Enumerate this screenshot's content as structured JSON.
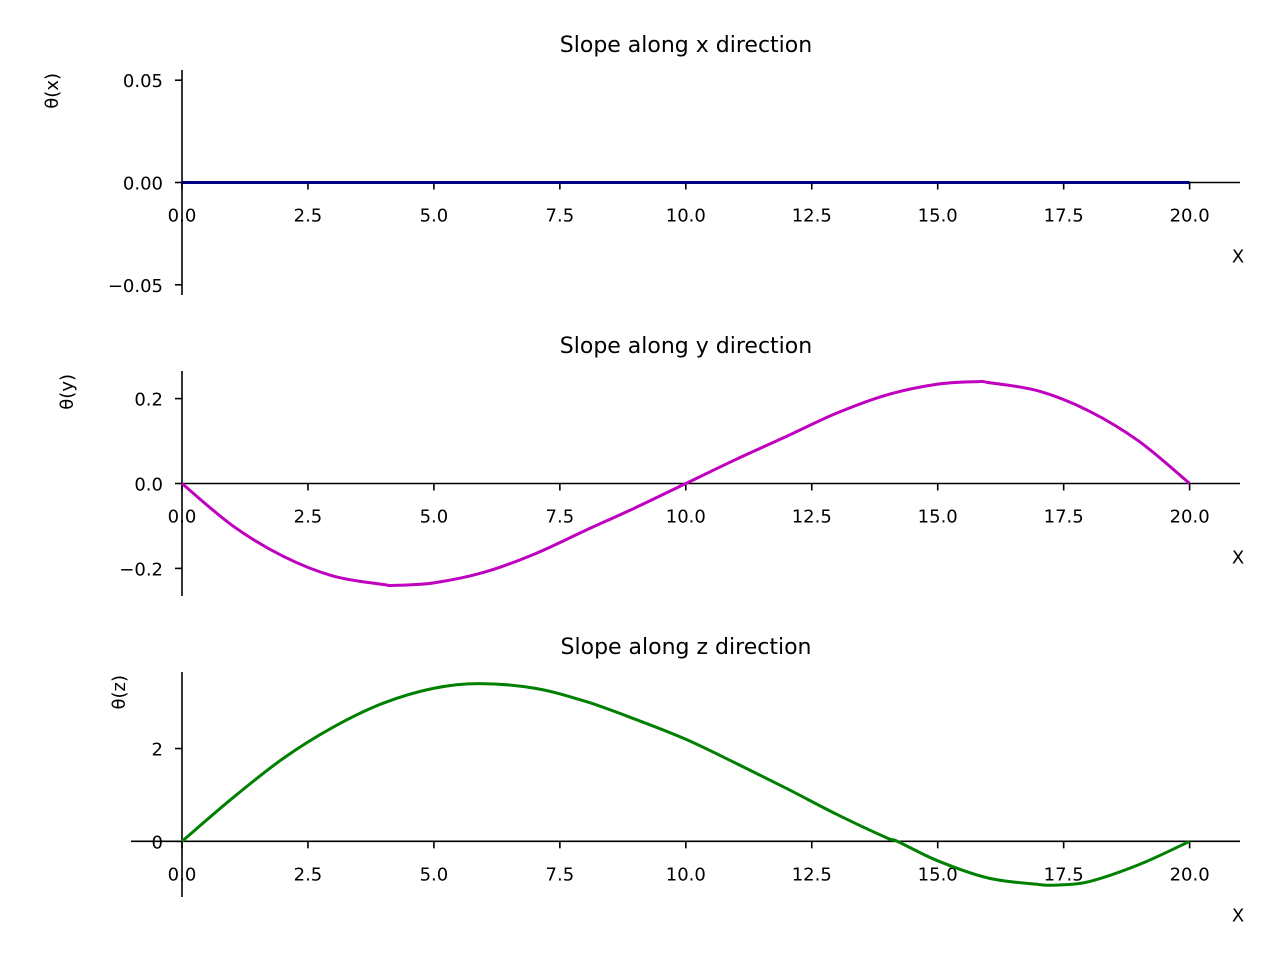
{
  "chart_data": [
    {
      "type": "line",
      "title": "Slope along x direction",
      "xlabel": "X",
      "ylabel": "θ(x)",
      "xlim": [
        0,
        21
      ],
      "ylim": [
        -0.055,
        0.055
      ],
      "xticks": [
        "0.0",
        "2.5",
        "5.0",
        "7.5",
        "10.0",
        "12.5",
        "15.0",
        "17.5",
        "20.0"
      ],
      "xtick_values": [
        0,
        2.5,
        5,
        7.5,
        10,
        12.5,
        15,
        17.5,
        20
      ],
      "yticks": [
        "−0.05",
        "0.00",
        "0.05"
      ],
      "ytick_values": [
        -0.05,
        0,
        0.05
      ],
      "grid": false,
      "series": [
        {
          "color": "#000080",
          "x": [
            0,
            2.5,
            5,
            7.5,
            10,
            12.5,
            15,
            17.5,
            20
          ],
          "y": [
            0,
            0,
            0,
            0,
            0,
            0,
            0,
            0,
            0
          ]
        }
      ]
    },
    {
      "type": "line",
      "title": "Slope along y direction",
      "xlabel": "X",
      "ylabel": "θ(y)",
      "xlim": [
        0,
        21
      ],
      "ylim": [
        -0.265,
        0.265
      ],
      "xticks": [
        "0.0",
        "2.5",
        "5.0",
        "7.5",
        "10.0",
        "12.5",
        "15.0",
        "17.5",
        "20.0"
      ],
      "xtick_values": [
        0,
        2.5,
        5,
        7.5,
        10,
        12.5,
        15,
        17.5,
        20
      ],
      "yticks": [
        "−0.2",
        "0.0",
        "0.2"
      ],
      "ytick_values": [
        -0.2,
        0,
        0.2
      ],
      "grid": false,
      "series": [
        {
          "color": "#bf00bf",
          "x": [
            0,
            1,
            2,
            3,
            4,
            4.2,
            5,
            6,
            7,
            8,
            9,
            10,
            11,
            12,
            13,
            14,
            15,
            15.8,
            16,
            17,
            18,
            19,
            20
          ],
          "y": [
            0,
            -0.099,
            -0.171,
            -0.218,
            -0.238,
            -0.24,
            -0.234,
            -0.209,
            -0.166,
            -0.111,
            -0.057,
            0,
            0.057,
            0.111,
            0.166,
            0.209,
            0.234,
            0.24,
            0.238,
            0.218,
            0.171,
            0.099,
            0
          ]
        }
      ]
    },
    {
      "type": "line",
      "title": "Slope along z direction",
      "xlabel": "X",
      "ylabel": "θ(z)",
      "xlim": [
        0,
        21
      ],
      "ylim": [
        -1.2,
        3.65
      ],
      "xticks": [
        "0.0",
        "2.5",
        "5.0",
        "7.5",
        "10.0",
        "12.5",
        "15.0",
        "17.5",
        "20.0"
      ],
      "xtick_values": [
        0,
        2.5,
        5,
        7.5,
        10,
        12.5,
        15,
        17.5,
        20
      ],
      "yticks": [
        "0",
        "2"
      ],
      "ytick_values": [
        0,
        2
      ],
      "grid": false,
      "series": [
        {
          "color": "#008000",
          "x": [
            0,
            1,
            2,
            3,
            4,
            5,
            5.9,
            7,
            8,
            9,
            10,
            11,
            12,
            13,
            14,
            14.2,
            15,
            16,
            17,
            17.4,
            18,
            19,
            20
          ],
          "y": [
            0,
            0.93,
            1.78,
            2.46,
            2.98,
            3.3,
            3.4,
            3.3,
            3.02,
            2.63,
            2.2,
            1.68,
            1.14,
            0.58,
            0.07,
            0,
            -0.42,
            -0.79,
            -0.93,
            -0.94,
            -0.87,
            -0.5,
            0
          ]
        }
      ]
    }
  ]
}
